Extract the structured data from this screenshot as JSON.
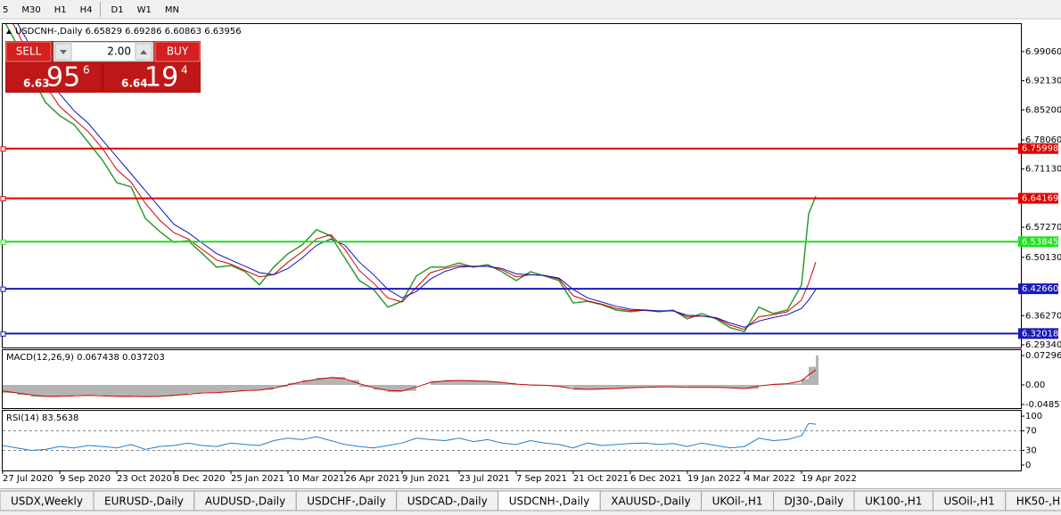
{
  "toolbar": {
    "timeframes": [
      "5",
      "M30",
      "H1",
      "H4",
      "D1",
      "W1",
      "MN"
    ]
  },
  "trade_panel": {
    "sell": "SELL",
    "buy": "BUY",
    "volume": "2.00",
    "bid": {
      "prefix": "6.63",
      "big": "95",
      "pip": "6"
    },
    "ask": {
      "prefix": "6.64",
      "big": "19",
      "pip": "4"
    }
  },
  "tabs": {
    "items": [
      "USDX,Weekly",
      "EURUSD-,Daily",
      "AUDUSD-,Daily",
      "USDCHF-,Daily",
      "USDCAD-,Daily",
      "USDCNH-,Daily",
      "XAUUSD-,Daily",
      "UKOil-,H1",
      "DJ30-,Daily",
      "UK100-,H1",
      "USOil-,H1",
      "HK50-,H1"
    ],
    "active": 5
  },
  "chart_data": [
    {
      "type": "line",
      "title": "USDCNH-,Daily 6.65829 6.69286 6.60863 6.63956",
      "x": [
        0,
        8,
        16,
        24,
        32,
        40,
        48,
        56,
        64,
        72,
        80,
        88,
        96,
        104,
        112,
        120,
        128,
        136,
        144,
        152,
        160,
        168,
        176,
        184,
        192,
        200,
        208,
        216,
        224,
        232,
        240,
        248,
        256,
        264,
        272,
        280,
        288,
        296,
        304,
        312,
        320,
        328,
        336,
        344,
        352,
        360,
        368,
        376,
        384,
        392,
        400,
        408,
        416,
        424,
        432,
        440,
        448,
        452,
        456
      ],
      "xlim": [
        0,
        571
      ],
      "ylim": [
        6.287,
        7.056
      ],
      "yticks": [
        {
          "value": 6.9906,
          "label": "6.99060"
        },
        {
          "value": 6.9213,
          "label": "6.92130"
        },
        {
          "value": 6.852,
          "label": "6.85200"
        },
        {
          "value": 6.7806,
          "label": "6.78060"
        },
        {
          "value": 6.7113,
          "label": "6.71130"
        },
        {
          "value": 6.5727,
          "label": "6.57270"
        },
        {
          "value": 6.5013,
          "label": "6.50130"
        },
        {
          "value": 6.3627,
          "label": "6.36270"
        },
        {
          "value": 6.2934,
          "label": "6.29340"
        }
      ],
      "series": [
        {
          "mark": "line",
          "color": "#2f9a2f",
          "values": [
            7.07,
            7.007,
            6.933,
            6.87,
            6.838,
            6.817,
            6.775,
            6.732,
            6.679,
            6.669,
            6.594,
            6.563,
            6.537,
            6.541,
            6.51,
            6.478,
            6.482,
            6.467,
            6.436,
            6.478,
            6.51,
            6.531,
            6.567,
            6.552,
            6.499,
            6.446,
            6.425,
            6.383,
            6.397,
            6.457,
            6.478,
            6.478,
            6.488,
            6.478,
            6.484,
            6.467,
            6.446,
            6.467,
            6.457,
            6.446,
            6.393,
            6.397,
            6.389,
            6.376,
            6.372,
            6.376,
            6.372,
            6.376,
            6.355,
            6.368,
            6.355,
            6.334,
            6.325,
            6.383,
            6.368,
            6.376,
            6.436,
            6.605,
            6.647
          ]
        },
        {
          "mark": "line",
          "color": "#d00000",
          "values": [
            7.1,
            7.04,
            6.97,
            6.91,
            6.86,
            6.83,
            6.8,
            6.76,
            6.71,
            6.68,
            6.63,
            6.59,
            6.56,
            6.545,
            6.52,
            6.495,
            6.485,
            6.47,
            6.455,
            6.46,
            6.49,
            6.515,
            6.545,
            6.555,
            6.52,
            6.47,
            6.44,
            6.405,
            6.395,
            6.43,
            6.465,
            6.475,
            6.482,
            6.48,
            6.48,
            6.472,
            6.455,
            6.46,
            6.458,
            6.45,
            6.41,
            6.398,
            6.39,
            6.38,
            6.375,
            6.375,
            6.373,
            6.374,
            6.36,
            6.362,
            6.357,
            6.34,
            6.33,
            6.36,
            6.365,
            6.372,
            6.4,
            6.44,
            6.49
          ]
        },
        {
          "mark": "line",
          "color": "#1010c0",
          "values": [
            7.12,
            7.06,
            7.0,
            6.94,
            6.89,
            6.85,
            6.82,
            6.78,
            6.74,
            6.7,
            6.66,
            6.62,
            6.58,
            6.56,
            6.535,
            6.51,
            6.495,
            6.48,
            6.465,
            6.46,
            6.475,
            6.5,
            6.53,
            6.545,
            6.53,
            6.49,
            6.46,
            6.425,
            6.405,
            6.42,
            6.45,
            6.468,
            6.478,
            6.48,
            6.48,
            6.475,
            6.462,
            6.46,
            6.458,
            6.452,
            6.425,
            6.405,
            6.395,
            6.385,
            6.378,
            6.376,
            6.374,
            6.374,
            6.364,
            6.362,
            6.358,
            6.345,
            6.335,
            6.35,
            6.358,
            6.365,
            6.38,
            6.4,
            6.425
          ]
        }
      ],
      "levels": [
        {
          "price": 6.75998,
          "color": "#e00000"
        },
        {
          "price": 6.64169,
          "color": "#e00000"
        },
        {
          "price": 6.53845,
          "color": "#20e020"
        },
        {
          "price": {
            "value": 6.4266,
            "label": "6.42660"
          },
          "color": "#1a1ab8"
        },
        {
          "price": 6.32018,
          "color": "#1a1ab8"
        }
      ]
    },
    {
      "type": "bar",
      "title": "MACD(12,26,9) 0.067438 0.037203",
      "x": [
        0,
        8,
        16,
        24,
        32,
        40,
        48,
        56,
        64,
        72,
        80,
        88,
        96,
        104,
        112,
        120,
        128,
        136,
        144,
        152,
        160,
        168,
        176,
        184,
        192,
        200,
        208,
        216,
        224,
        232,
        240,
        248,
        256,
        264,
        272,
        280,
        288,
        296,
        304,
        312,
        320,
        328,
        336,
        344,
        352,
        360,
        368,
        376,
        384,
        392,
        400,
        408,
        416,
        424,
        432,
        440,
        448,
        452,
        456
      ],
      "xlim": [
        0,
        571
      ],
      "ylim": [
        -0.0575,
        0.0862
      ],
      "yticks": [
        0.072963,
        {
          "value": 0,
          "label": "0.00"
        },
        -0.04857
      ],
      "series": [
        {
          "mark": "bar",
          "color": "#b4b4b4",
          "values": [
            -0.02,
            -0.025,
            -0.03,
            -0.03,
            -0.028,
            -0.025,
            -0.025,
            -0.028,
            -0.03,
            -0.028,
            -0.03,
            -0.028,
            -0.025,
            -0.02,
            -0.018,
            -0.018,
            -0.015,
            -0.012,
            -0.012,
            -0.005,
            0.005,
            0.012,
            0.018,
            0.02,
            0.012,
            -0.005,
            -0.012,
            -0.018,
            -0.015,
            0.0,
            0.01,
            0.012,
            0.012,
            0.01,
            0.008,
            0.005,
            0.0,
            -0.002,
            -0.002,
            -0.005,
            -0.012,
            -0.012,
            -0.01,
            -0.008,
            -0.007,
            -0.005,
            -0.005,
            -0.004,
            -0.006,
            -0.006,
            -0.006,
            -0.008,
            -0.01,
            0.0,
            0.003,
            0.004,
            0.015,
            0.045,
            0.0729
          ]
        },
        {
          "mark": "line",
          "color": "#d00000",
          "values": [
            -0.015,
            -0.02,
            -0.025,
            -0.028,
            -0.028,
            -0.027,
            -0.026,
            -0.027,
            -0.028,
            -0.028,
            -0.029,
            -0.028,
            -0.026,
            -0.023,
            -0.02,
            -0.019,
            -0.017,
            -0.014,
            -0.013,
            -0.008,
            0.0,
            0.008,
            0.014,
            0.018,
            0.015,
            0.003,
            -0.007,
            -0.014,
            -0.015,
            -0.005,
            0.006,
            0.01,
            0.011,
            0.01,
            0.009,
            0.006,
            0.002,
            0.0,
            -0.001,
            -0.004,
            -0.009,
            -0.011,
            -0.01,
            -0.009,
            -0.007,
            -0.006,
            -0.005,
            -0.005,
            -0.006,
            -0.006,
            -0.006,
            -0.007,
            -0.009,
            -0.003,
            0.001,
            0.003,
            0.01,
            0.025,
            0.0372
          ]
        }
      ]
    },
    {
      "type": "line",
      "title": "RSI(14) 83.5638",
      "x": [
        0,
        8,
        16,
        24,
        32,
        40,
        48,
        56,
        64,
        72,
        80,
        88,
        96,
        104,
        112,
        120,
        128,
        136,
        144,
        152,
        160,
        168,
        176,
        184,
        192,
        200,
        208,
        216,
        224,
        232,
        240,
        248,
        256,
        264,
        272,
        280,
        288,
        296,
        304,
        312,
        320,
        328,
        336,
        344,
        352,
        360,
        368,
        376,
        384,
        392,
        400,
        408,
        416,
        424,
        432,
        440,
        448,
        452,
        456
      ],
      "xlim": [
        0,
        571
      ],
      "ylim": [
        -11,
        111
      ],
      "yticks": [
        100,
        70,
        30,
        0
      ],
      "xticks": [
        {
          "value": 0,
          "label": "27 Jul 2020"
        },
        {
          "value": 32,
          "label": "9 Sep 2020"
        },
        {
          "value": 64,
          "label": "23 Oct 2020"
        },
        {
          "value": 96,
          "label": "8 Dec 2020"
        },
        {
          "value": 128,
          "label": "25 Jan 2021"
        },
        {
          "value": 160,
          "label": "10 Mar 2021"
        },
        {
          "value": 192,
          "label": "26 Apr 2021"
        },
        {
          "value": 224,
          "label": "9 Jun 2021"
        },
        {
          "value": 256,
          "label": "23 Jul 2021"
        },
        {
          "value": 288,
          "label": "7 Sep 2021"
        },
        {
          "value": 320,
          "label": "21 Oct 2021"
        },
        {
          "value": 352,
          "label": "6 Dec 2021"
        },
        {
          "value": 384,
          "label": "19 Jan 2022"
        },
        {
          "value": 416,
          "label": "4 Mar 2022"
        },
        {
          "value": 448,
          "label": "19 Apr 2022"
        }
      ],
      "series": [
        {
          "mark": "line",
          "color": "#1e7fd0",
          "values": [
            40,
            35,
            30,
            32,
            38,
            35,
            40,
            38,
            35,
            42,
            32,
            38,
            40,
            45,
            40,
            38,
            45,
            42,
            40,
            50,
            55,
            52,
            58,
            50,
            42,
            38,
            35,
            40,
            45,
            55,
            52,
            50,
            55,
            48,
            52,
            45,
            42,
            50,
            45,
            42,
            35,
            45,
            40,
            42,
            44,
            45,
            42,
            44,
            38,
            45,
            40,
            35,
            38,
            55,
            50,
            52,
            60,
            85,
            83.56
          ]
        }
      ]
    }
  ]
}
